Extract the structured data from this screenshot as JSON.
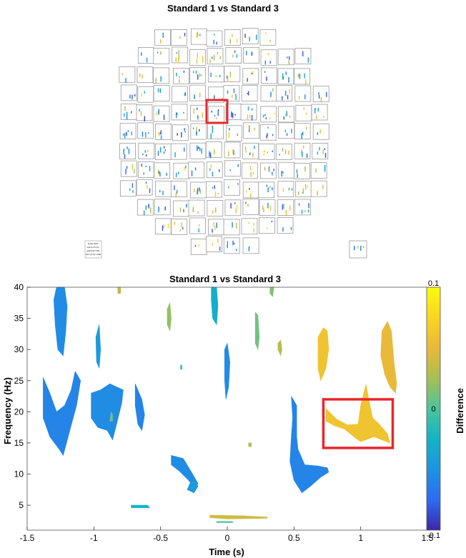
{
  "topo": {
    "title": "Standard 1 vs Standard 3",
    "note_lines": [
      "11-Dec-2017",
      "time=[-1.5 1.5]",
      "pval=0.977 400",
      "zlim=[-0.1 0.1 NN]"
    ]
  },
  "chart_data": {
    "type": "heatmap",
    "title": "Standard 1 vs Standard 3",
    "xlabel": "Time (s)",
    "ylabel": "Frequency (Hz)",
    "xlim": [
      -1.5,
      1.5
    ],
    "ylim": [
      1,
      40
    ],
    "xticks": [
      -1.5,
      -1,
      -0.5,
      0,
      0.5,
      1,
      1.5
    ],
    "xtick_labels": [
      "-1.5",
      "-1",
      "-0.5",
      "0",
      "0.5",
      "1",
      "1.5"
    ],
    "yticks": [
      5,
      10,
      15,
      20,
      25,
      30,
      35,
      40
    ],
    "yticks_labels": [
      "5",
      "10",
      "15",
      "20",
      "25",
      "30",
      "35",
      "40"
    ],
    "colorbar": {
      "label": "Difference",
      "min": -0.1,
      "max": 0.1,
      "tick_values": [
        0.1,
        0,
        -0.1
      ],
      "tick_labels": [
        "0.1",
        "0",
        "-0.1"
      ],
      "colormap": [
        "#3e26a8",
        "#2c6cf2",
        "#1e94e0",
        "#12b3c6",
        "#4bc59c",
        "#a7bf53",
        "#e9b93a",
        "#fbd522",
        "#f9fb0e"
      ]
    },
    "highlight": {
      "x": [
        0.72,
        1.24
      ],
      "y": [
        14.2,
        22
      ],
      "color": "#e8262b"
    },
    "blobs": [
      {
        "v": -0.055,
        "pts": [
          [
            -1.28,
            40
          ],
          [
            -1.22,
            40
          ],
          [
            -1.2,
            37
          ],
          [
            -1.21,
            33
          ],
          [
            -1.23,
            29
          ],
          [
            -1.27,
            30
          ],
          [
            -1.29,
            34
          ],
          [
            -1.3,
            38
          ]
        ]
      },
      {
        "v": -0.045,
        "pts": [
          [
            -0.96,
            34
          ],
          [
            -0.95,
            30
          ],
          [
            -0.96,
            27
          ],
          [
            -0.98,
            28
          ],
          [
            -0.985,
            32
          ]
        ]
      },
      {
        "v": -0.06,
        "pts": [
          [
            -1.38,
            25.5
          ],
          [
            -1.33,
            23
          ],
          [
            -1.28,
            20
          ],
          [
            -1.22,
            21
          ],
          [
            -1.17,
            23.5
          ],
          [
            -1.14,
            26.5
          ],
          [
            -1.1,
            25
          ],
          [
            -1.13,
            21
          ],
          [
            -1.18,
            17
          ],
          [
            -1.23,
            13
          ],
          [
            -1.26,
            14
          ],
          [
            -1.33,
            16
          ],
          [
            -1.38,
            19
          ]
        ]
      },
      {
        "v": -0.055,
        "pts": [
          [
            -1.02,
            23
          ],
          [
            -0.95,
            23.5
          ],
          [
            -0.88,
            24.5
          ],
          [
            -0.78,
            23.5
          ],
          [
            -0.79,
            21.5
          ],
          [
            -0.83,
            18
          ],
          [
            -0.86,
            15.5
          ],
          [
            -0.9,
            17
          ],
          [
            -0.97,
            17.5
          ],
          [
            -1.02,
            19
          ]
        ]
      },
      {
        "v": -0.06,
        "pts": [
          [
            -0.69,
            24.5
          ],
          [
            -0.64,
            22
          ],
          [
            -0.62,
            19.5
          ],
          [
            -0.64,
            17
          ],
          [
            -0.67,
            18
          ],
          [
            -0.69,
            21
          ]
        ]
      },
      {
        "v": -0.03,
        "pts": [
          [
            -0.12,
            40
          ],
          [
            -0.08,
            40
          ],
          [
            -0.07,
            37
          ],
          [
            -0.08,
            34
          ],
          [
            -0.11,
            35
          ],
          [
            -0.12,
            38
          ]
        ]
      },
      {
        "v": -0.055,
        "pts": [
          [
            -0.02,
            30
          ],
          [
            0.0,
            31
          ],
          [
            0.02,
            28
          ],
          [
            0.01,
            24
          ],
          [
            -0.01,
            22
          ],
          [
            -0.02,
            25
          ]
        ]
      },
      {
        "v": -0.06,
        "pts": [
          [
            0.48,
            22.5
          ],
          [
            0.52,
            21
          ],
          [
            0.52,
            16
          ],
          [
            0.53,
            14
          ],
          [
            0.58,
            11.5
          ],
          [
            0.68,
            11.3
          ],
          [
            0.75,
            11
          ],
          [
            0.76,
            10.3
          ],
          [
            0.7,
            9.5
          ],
          [
            0.62,
            8
          ],
          [
            0.56,
            7
          ],
          [
            0.5,
            9
          ],
          [
            0.47,
            12
          ],
          [
            0.48,
            16
          ],
          [
            0.49,
            19
          ]
        ]
      },
      {
        "v": -0.055,
        "pts": [
          [
            -0.42,
            13
          ],
          [
            -0.33,
            12.5
          ],
          [
            -0.26,
            10
          ],
          [
            -0.22,
            8.5
          ],
          [
            -0.24,
            7.5
          ],
          [
            -0.29,
            9
          ],
          [
            -0.36,
            10.5
          ],
          [
            -0.42,
            11.5
          ]
        ]
      },
      {
        "v": -0.045,
        "pts": [
          [
            -0.28,
            8.5
          ],
          [
            -0.24,
            9
          ],
          [
            -0.22,
            8
          ],
          [
            -0.25,
            7
          ],
          [
            -0.3,
            7.5
          ]
        ]
      },
      {
        "v": -0.025,
        "pts": [
          [
            -0.72,
            5
          ],
          [
            -0.6,
            5
          ],
          [
            -0.58,
            4.6
          ],
          [
            -0.72,
            4.6
          ]
        ]
      },
      {
        "v": 0.06,
        "pts": [
          [
            0.74,
            20.5
          ],
          [
            0.82,
            18.8
          ],
          [
            0.9,
            17.9
          ],
          [
            0.98,
            18
          ],
          [
            1.0,
            21
          ],
          [
            1.04,
            24.4
          ],
          [
            1.07,
            21
          ],
          [
            1.09,
            19
          ],
          [
            1.14,
            18
          ],
          [
            1.2,
            16.5
          ],
          [
            1.22,
            15
          ],
          [
            1.18,
            15.3
          ],
          [
            1.1,
            16
          ],
          [
            1.0,
            15.2
          ],
          [
            0.96,
            15.8
          ],
          [
            0.88,
            17.2
          ],
          [
            0.8,
            17.8
          ],
          [
            0.74,
            18.5
          ]
        ]
      },
      {
        "v": 0.06,
        "pts": [
          [
            0.68,
            32
          ],
          [
            0.72,
            33.5
          ],
          [
            0.75,
            33
          ],
          [
            0.76,
            30
          ],
          [
            0.74,
            27
          ],
          [
            0.72,
            26
          ],
          [
            0.7,
            25
          ],
          [
            0.68,
            27
          ]
        ]
      },
      {
        "v": 0.05,
        "pts": [
          [
            1.16,
            33
          ],
          [
            1.2,
            34.5
          ],
          [
            1.23,
            33
          ],
          [
            1.25,
            28
          ],
          [
            1.27,
            24.5
          ],
          [
            1.26,
            23
          ],
          [
            1.22,
            24
          ],
          [
            1.18,
            26
          ],
          [
            1.15,
            29
          ]
        ]
      },
      {
        "v": 0.03,
        "pts": [
          [
            -0.82,
            40
          ],
          [
            -0.8,
            40
          ],
          [
            -0.8,
            39
          ],
          [
            -0.82,
            39
          ]
        ]
      },
      {
        "v": 0.02,
        "pts": [
          [
            -0.45,
            36.5
          ],
          [
            -0.43,
            37.5
          ],
          [
            -0.42,
            35
          ],
          [
            -0.43,
            33
          ],
          [
            -0.45,
            34
          ]
        ]
      },
      {
        "v": 0.015,
        "pts": [
          [
            0.32,
            40
          ],
          [
            0.35,
            40
          ],
          [
            0.34,
            38.5
          ],
          [
            0.32,
            39
          ]
        ]
      },
      {
        "v": 0.01,
        "pts": [
          [
            0.21,
            36
          ],
          [
            0.23,
            35.5
          ],
          [
            0.24,
            32
          ],
          [
            0.23,
            30
          ],
          [
            0.21,
            31
          ]
        ]
      },
      {
        "v": 0.03,
        "pts": [
          [
            0.38,
            31
          ],
          [
            0.4,
            31.5
          ],
          [
            0.41,
            30
          ],
          [
            0.4,
            29
          ],
          [
            0.38,
            30
          ]
        ]
      },
      {
        "v": 0.01,
        "pts": [
          [
            -0.87,
            20
          ],
          [
            -0.86,
            19.5
          ],
          [
            -0.86,
            18.5
          ],
          [
            -0.88,
            18.5
          ]
        ]
      },
      {
        "v": 0.025,
        "pts": [
          [
            0.16,
            15
          ],
          [
            0.18,
            15
          ],
          [
            0.18,
            14.4
          ],
          [
            0.16,
            14.4
          ]
        ]
      },
      {
        "v": 0.04,
        "pts": [
          [
            -0.13,
            3.4
          ],
          [
            0.12,
            3.3
          ],
          [
            0.3,
            3.1
          ],
          [
            0.3,
            2.9
          ],
          [
            0.0,
            2.8
          ],
          [
            -0.13,
            3.0
          ]
        ]
      },
      {
        "v": 0.0,
        "pts": [
          [
            -0.08,
            2.4
          ],
          [
            0.04,
            2.4
          ],
          [
            0.04,
            2.2
          ],
          [
            -0.08,
            2.2
          ]
        ]
      },
      {
        "v": -0.02,
        "pts": [
          [
            -0.35,
            27.5
          ],
          [
            -0.34,
            27.5
          ],
          [
            -0.34,
            26.8
          ],
          [
            -0.35,
            26.8
          ]
        ]
      }
    ]
  }
}
